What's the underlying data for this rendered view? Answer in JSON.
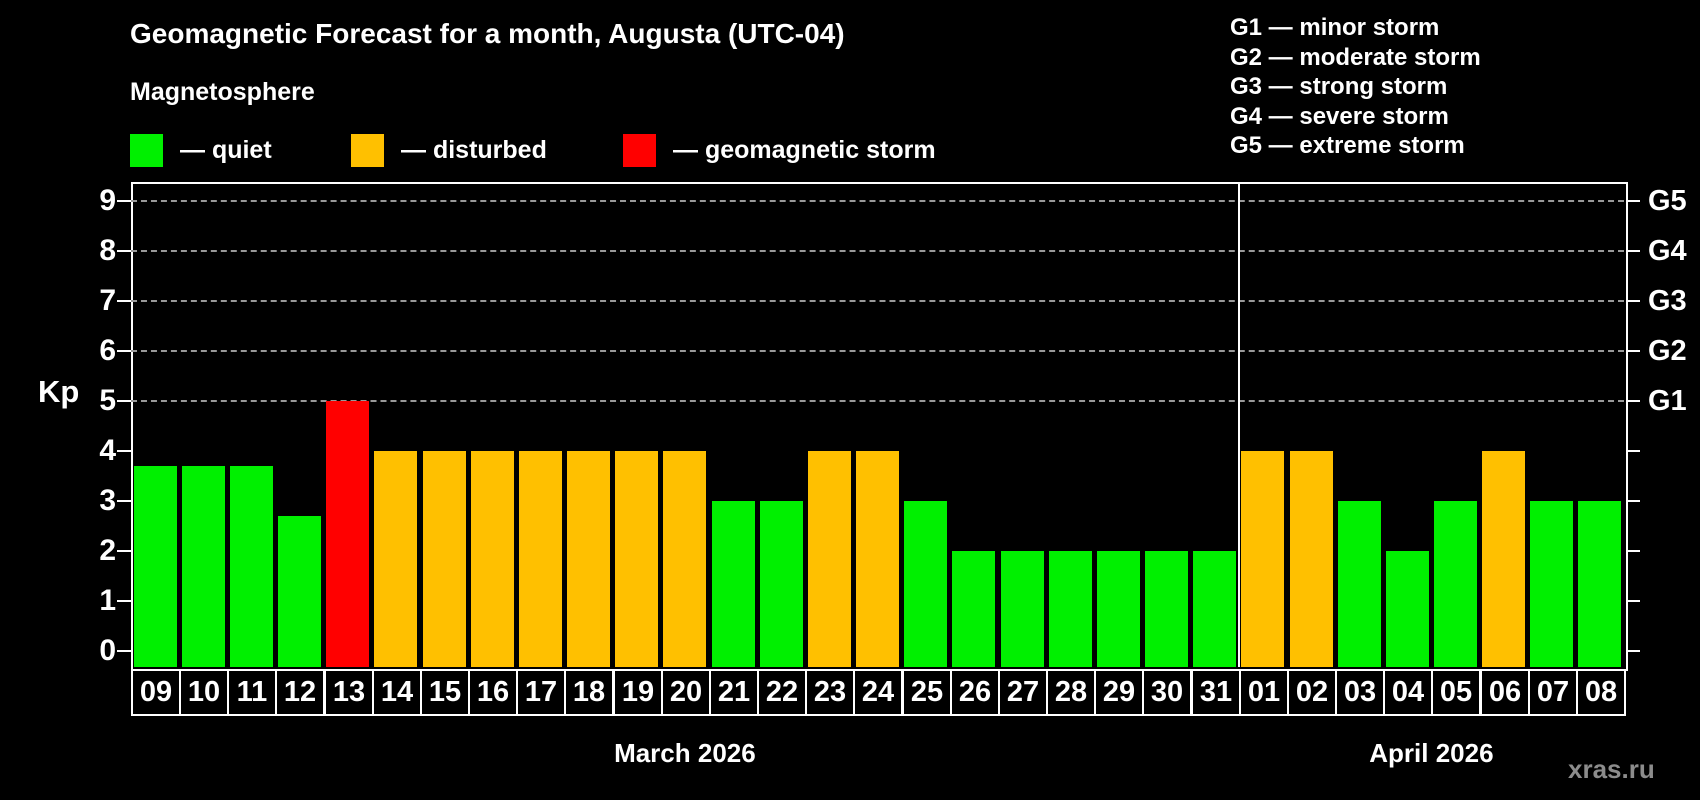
{
  "title": "Geomagnetic Forecast for a month, Augusta (UTC-04)",
  "subtitle": "Magnetosphere",
  "watermark": "xras.ru",
  "axis": {
    "kp_label": "Kp"
  },
  "legend": {
    "items": [
      {
        "label": "— quiet",
        "state": "quiet"
      },
      {
        "label": "— disturbed",
        "state": "disturbed"
      },
      {
        "label": "— geomagnetic storm",
        "state": "storm"
      }
    ]
  },
  "g_legend": [
    "G1 — minor storm",
    "G2 — moderate storm",
    "G3 — strong storm",
    "G4 — severe storm",
    "G5 — extreme storm"
  ],
  "colors": {
    "quiet": "#00F000",
    "disturbed": "#FFC000",
    "storm": "#FF0000",
    "grid": "#999999",
    "axis": "#FFFFFF",
    "watermark": "#8C8C8C"
  },
  "chart_data": {
    "type": "bar",
    "title": "Geomagnetic Forecast for a month, Augusta (UTC-04)",
    "ylabel": "Kp",
    "ylim": [
      0,
      9
    ],
    "yticks": [
      0,
      1,
      2,
      3,
      4,
      5,
      6,
      7,
      8,
      9
    ],
    "right_axis": [
      {
        "label": "G1",
        "kp": 5
      },
      {
        "label": "G2",
        "kp": 6
      },
      {
        "label": "G3",
        "kp": 7
      },
      {
        "label": "G4",
        "kp": 8
      },
      {
        "label": "G5",
        "kp": 9
      }
    ],
    "gridlines_kp": [
      5,
      6,
      7,
      8,
      9
    ],
    "legend_position": "top-left",
    "grid": "dashed horizontal at storm levels",
    "bars": [
      {
        "month": "March 2026",
        "day": "09",
        "kp": 3.7,
        "state": "quiet"
      },
      {
        "month": "March 2026",
        "day": "10",
        "kp": 3.7,
        "state": "quiet"
      },
      {
        "month": "March 2026",
        "day": "11",
        "kp": 3.7,
        "state": "quiet"
      },
      {
        "month": "March 2026",
        "day": "12",
        "kp": 2.7,
        "state": "quiet"
      },
      {
        "month": "March 2026",
        "day": "13",
        "kp": 5.0,
        "state": "storm"
      },
      {
        "month": "March 2026",
        "day": "14",
        "kp": 4.0,
        "state": "disturbed"
      },
      {
        "month": "March 2026",
        "day": "15",
        "kp": 4.0,
        "state": "disturbed"
      },
      {
        "month": "March 2026",
        "day": "16",
        "kp": 4.0,
        "state": "disturbed"
      },
      {
        "month": "March 2026",
        "day": "17",
        "kp": 4.0,
        "state": "disturbed"
      },
      {
        "month": "March 2026",
        "day": "18",
        "kp": 4.0,
        "state": "disturbed"
      },
      {
        "month": "March 2026",
        "day": "19",
        "kp": 4.0,
        "state": "disturbed"
      },
      {
        "month": "March 2026",
        "day": "20",
        "kp": 4.0,
        "state": "disturbed"
      },
      {
        "month": "March 2026",
        "day": "21",
        "kp": 3.0,
        "state": "quiet"
      },
      {
        "month": "March 2026",
        "day": "22",
        "kp": 3.0,
        "state": "quiet"
      },
      {
        "month": "March 2026",
        "day": "23",
        "kp": 4.0,
        "state": "disturbed"
      },
      {
        "month": "March 2026",
        "day": "24",
        "kp": 4.0,
        "state": "disturbed"
      },
      {
        "month": "March 2026",
        "day": "25",
        "kp": 3.0,
        "state": "quiet"
      },
      {
        "month": "March 2026",
        "day": "26",
        "kp": 2.0,
        "state": "quiet"
      },
      {
        "month": "March 2026",
        "day": "27",
        "kp": 2.0,
        "state": "quiet"
      },
      {
        "month": "March 2026",
        "day": "28",
        "kp": 2.0,
        "state": "quiet"
      },
      {
        "month": "March 2026",
        "day": "29",
        "kp": 2.0,
        "state": "quiet"
      },
      {
        "month": "March 2026",
        "day": "30",
        "kp": 2.0,
        "state": "quiet"
      },
      {
        "month": "March 2026",
        "day": "31",
        "kp": 2.0,
        "state": "quiet"
      },
      {
        "month": "April 2026",
        "day": "01",
        "kp": 4.0,
        "state": "disturbed"
      },
      {
        "month": "April 2026",
        "day": "02",
        "kp": 4.0,
        "state": "disturbed"
      },
      {
        "month": "April 2026",
        "day": "03",
        "kp": 3.0,
        "state": "quiet"
      },
      {
        "month": "April 2026",
        "day": "04",
        "kp": 2.0,
        "state": "quiet"
      },
      {
        "month": "April 2026",
        "day": "05",
        "kp": 3.0,
        "state": "quiet"
      },
      {
        "month": "April 2026",
        "day": "06",
        "kp": 4.0,
        "state": "disturbed"
      },
      {
        "month": "April 2026",
        "day": "07",
        "kp": 3.0,
        "state": "quiet"
      },
      {
        "month": "April 2026",
        "day": "08",
        "kp": 3.0,
        "state": "quiet"
      }
    ]
  }
}
